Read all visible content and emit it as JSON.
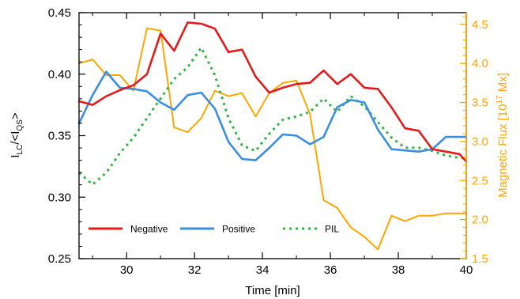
{
  "chart_data": {
    "type": "line",
    "xlabel": "Time [min]",
    "x_range": [
      28.6,
      40
    ],
    "x_ticks": [
      30,
      32,
      34,
      36,
      38,
      40
    ],
    "ylabel_left": {
      "main": "I",
      "sub1": "LC",
      "mid": "/<I",
      "sub2": "QS",
      "end": ">"
    },
    "ylim_left": [
      0.25,
      0.45
    ],
    "y_ticks_left": [
      0.25,
      0.3,
      0.35,
      0.4,
      0.45
    ],
    "ylabel_right": {
      "main": "Magnetic Flux [10",
      "sup": "17",
      "end": " Mx]"
    },
    "ylim_right": [
      1.5,
      4.65
    ],
    "y_ticks_right": [
      1.5,
      2.0,
      2.5,
      3.0,
      3.5,
      4.0,
      4.5
    ],
    "right_axis_color": "#ffa500",
    "legend_placement": "bottom-left",
    "x": [
      28.6,
      29.0,
      29.4,
      29.8,
      30.2,
      30.6,
      31.0,
      31.4,
      31.8,
      32.2,
      32.6,
      33.0,
      33.4,
      33.8,
      34.2,
      34.6,
      35.0,
      35.4,
      35.8,
      36.2,
      36.6,
      37.0,
      37.4,
      37.8,
      38.2,
      38.6,
      39.0,
      39.4,
      39.8,
      40.0
    ],
    "series": [
      {
        "name": "Negative",
        "axis": "left",
        "color": "#e41a1c",
        "style": "solid",
        "values": [
          0.378,
          0.375,
          0.382,
          0.387,
          0.391,
          0.4,
          0.433,
          0.419,
          0.442,
          0.441,
          0.437,
          0.418,
          0.42,
          0.398,
          0.385,
          0.389,
          0.392,
          0.393,
          0.403,
          0.392,
          0.4,
          0.389,
          0.388,
          0.373,
          0.356,
          0.354,
          0.339,
          0.337,
          0.335,
          0.329
        ]
      },
      {
        "name": "Positive",
        "axis": "left",
        "color": "#3a8fe0",
        "style": "solid",
        "values": [
          0.36,
          0.383,
          0.402,
          0.389,
          0.388,
          0.386,
          0.377,
          0.371,
          0.383,
          0.385,
          0.372,
          0.345,
          0.331,
          0.33,
          0.34,
          0.351,
          0.35,
          0.343,
          0.349,
          0.373,
          0.379,
          0.377,
          0.355,
          0.339,
          0.338,
          0.337,
          0.339,
          0.349,
          0.349,
          0.349
        ]
      },
      {
        "name": "PIL",
        "axis": "right",
        "color": "#33b545",
        "style": "dotted",
        "values": [
          2.6,
          2.45,
          2.6,
          2.85,
          3.05,
          3.3,
          3.55,
          3.8,
          3.95,
          4.2,
          3.85,
          3.3,
          2.95,
          2.88,
          3.1,
          3.28,
          3.32,
          3.38,
          3.55,
          3.38,
          3.58,
          3.45,
          3.25,
          3.05,
          2.92,
          2.92,
          2.88,
          2.82,
          2.79,
          2.79
        ]
      },
      {
        "name": "Magnetic Flux",
        "axis": "right",
        "color": "#ffa500",
        "style": "solid",
        "values": [
          4.0,
          4.05,
          3.85,
          3.85,
          3.65,
          4.45,
          4.42,
          3.18,
          3.12,
          3.3,
          3.65,
          3.58,
          3.62,
          3.32,
          3.62,
          3.75,
          3.78,
          3.35,
          2.25,
          2.15,
          1.9,
          1.78,
          1.62,
          2.05,
          1.98,
          2.05,
          2.05,
          2.08,
          2.08,
          2.08
        ]
      }
    ],
    "legend": [
      {
        "label": "Negative",
        "color": "#e41a1c",
        "style": "solid"
      },
      {
        "label": "Positive",
        "color": "#3a8fe0",
        "style": "solid"
      },
      {
        "label": "PIL",
        "color": "#33b545",
        "style": "dotted"
      }
    ]
  }
}
